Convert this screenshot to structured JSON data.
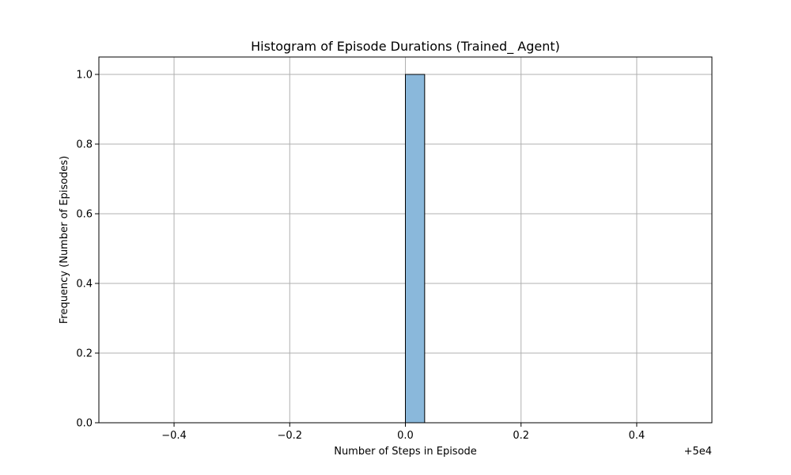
{
  "chart_data": {
    "type": "bar",
    "title": "Histogram of Episode Durations (Trained_ Agent)",
    "xlabel": "Number of Steps in Episode",
    "ylabel": "Frequency (Number of Episodes)",
    "x_offset_label": "+5e4",
    "x_offset": 50000,
    "xlim": [
      -0.53,
      0.53
    ],
    "ylim": [
      0,
      1.05
    ],
    "x_ticks": [
      -0.4,
      -0.2,
      0.0,
      0.2,
      0.4
    ],
    "x_tick_labels": [
      "−0.4",
      "−0.2",
      "0.0",
      "0.2",
      "0.4"
    ],
    "y_ticks": [
      0.0,
      0.2,
      0.4,
      0.6,
      0.8,
      1.0
    ],
    "y_tick_labels": [
      "0.0",
      "0.2",
      "0.4",
      "0.6",
      "0.8",
      "1.0"
    ],
    "grid": true,
    "bin_edges": [
      -0.5,
      -0.4667,
      -0.4333,
      -0.4,
      -0.3667,
      -0.3333,
      -0.3,
      -0.2667,
      -0.2333,
      -0.2,
      -0.1667,
      -0.1333,
      -0.1,
      -0.0667,
      -0.0333,
      0.0,
      0.0333,
      0.0667,
      0.1,
      0.1333,
      0.1667,
      0.2,
      0.2333,
      0.2667,
      0.3,
      0.3333,
      0.3667,
      0.4,
      0.4333,
      0.4667,
      0.5
    ],
    "counts": [
      0,
      0,
      0,
      0,
      0,
      0,
      0,
      0,
      0,
      0,
      0,
      0,
      0,
      0,
      0,
      1,
      0,
      0,
      0,
      0,
      0,
      0,
      0,
      0,
      0,
      0,
      0,
      0,
      0,
      0
    ],
    "bar_color": "#8ab8db",
    "edge_color": "#000000",
    "grid_color": "#b0b0b0"
  }
}
